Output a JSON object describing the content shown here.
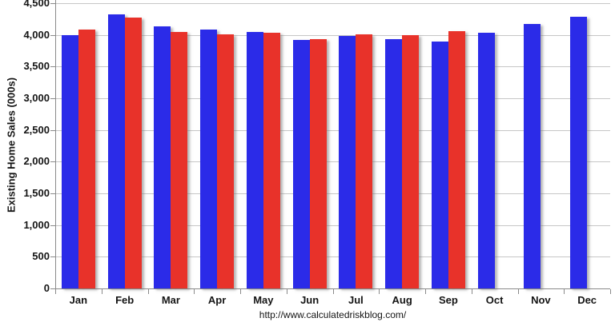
{
  "chart_data": {
    "type": "bar",
    "title": "",
    "xlabel": "",
    "ylabel": "Existing Home Sales (000s)",
    "footer": "http://www.calculatedriskblog.com/",
    "categories": [
      "Jan",
      "Feb",
      "Mar",
      "Apr",
      "May",
      "Jun",
      "Jul",
      "Aug",
      "Sep",
      "Oct",
      "Nov",
      "Dec"
    ],
    "series": [
      {
        "name": "prior-year-blue",
        "color": "#2b2be8",
        "values": [
          4000,
          4320,
          4130,
          4090,
          4050,
          3920,
          3980,
          3930,
          3900,
          4030,
          4170,
          4290
        ]
      },
      {
        "name": "current-year-red",
        "color": "#e8322a",
        "values": [
          4090,
          4270,
          4040,
          4010,
          4030,
          3930,
          4010,
          4000,
          4060,
          null,
          null,
          null
        ]
      }
    ],
    "ylim": [
      0,
      4500
    ],
    "ytick_step": 500,
    "ytick_labels": [
      "0",
      "500",
      "1,000",
      "1,500",
      "2,000",
      "2,500",
      "3,000",
      "3,500",
      "4,000",
      "4,500"
    ],
    "grid": true,
    "legend_position": "none",
    "colors": {
      "gridline": "#c6c6c6",
      "axis": "#8a8a8a",
      "text": "#141414",
      "background": "#ffffff"
    }
  }
}
